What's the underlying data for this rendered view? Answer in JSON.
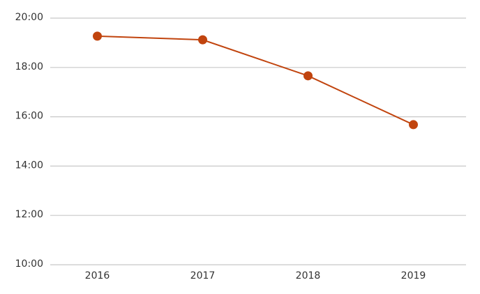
{
  "chart_data": {
    "type": "line",
    "categories": [
      "2016",
      "2017",
      "2018",
      "2019"
    ],
    "series": [
      {
        "color": "#c1440e",
        "values": [
          19.27,
          19.12,
          17.66,
          15.68
        ]
      }
    ],
    "ylim": [
      10,
      20
    ],
    "yticks": [
      {
        "value": 10,
        "label": "10:00"
      },
      {
        "value": 12,
        "label": "12:00"
      },
      {
        "value": 14,
        "label": "14:00"
      },
      {
        "value": 16,
        "label": "16:00"
      },
      {
        "value": 18,
        "label": "18:00"
      },
      {
        "value": 20,
        "label": "20:00"
      }
    ],
    "grid": true
  }
}
